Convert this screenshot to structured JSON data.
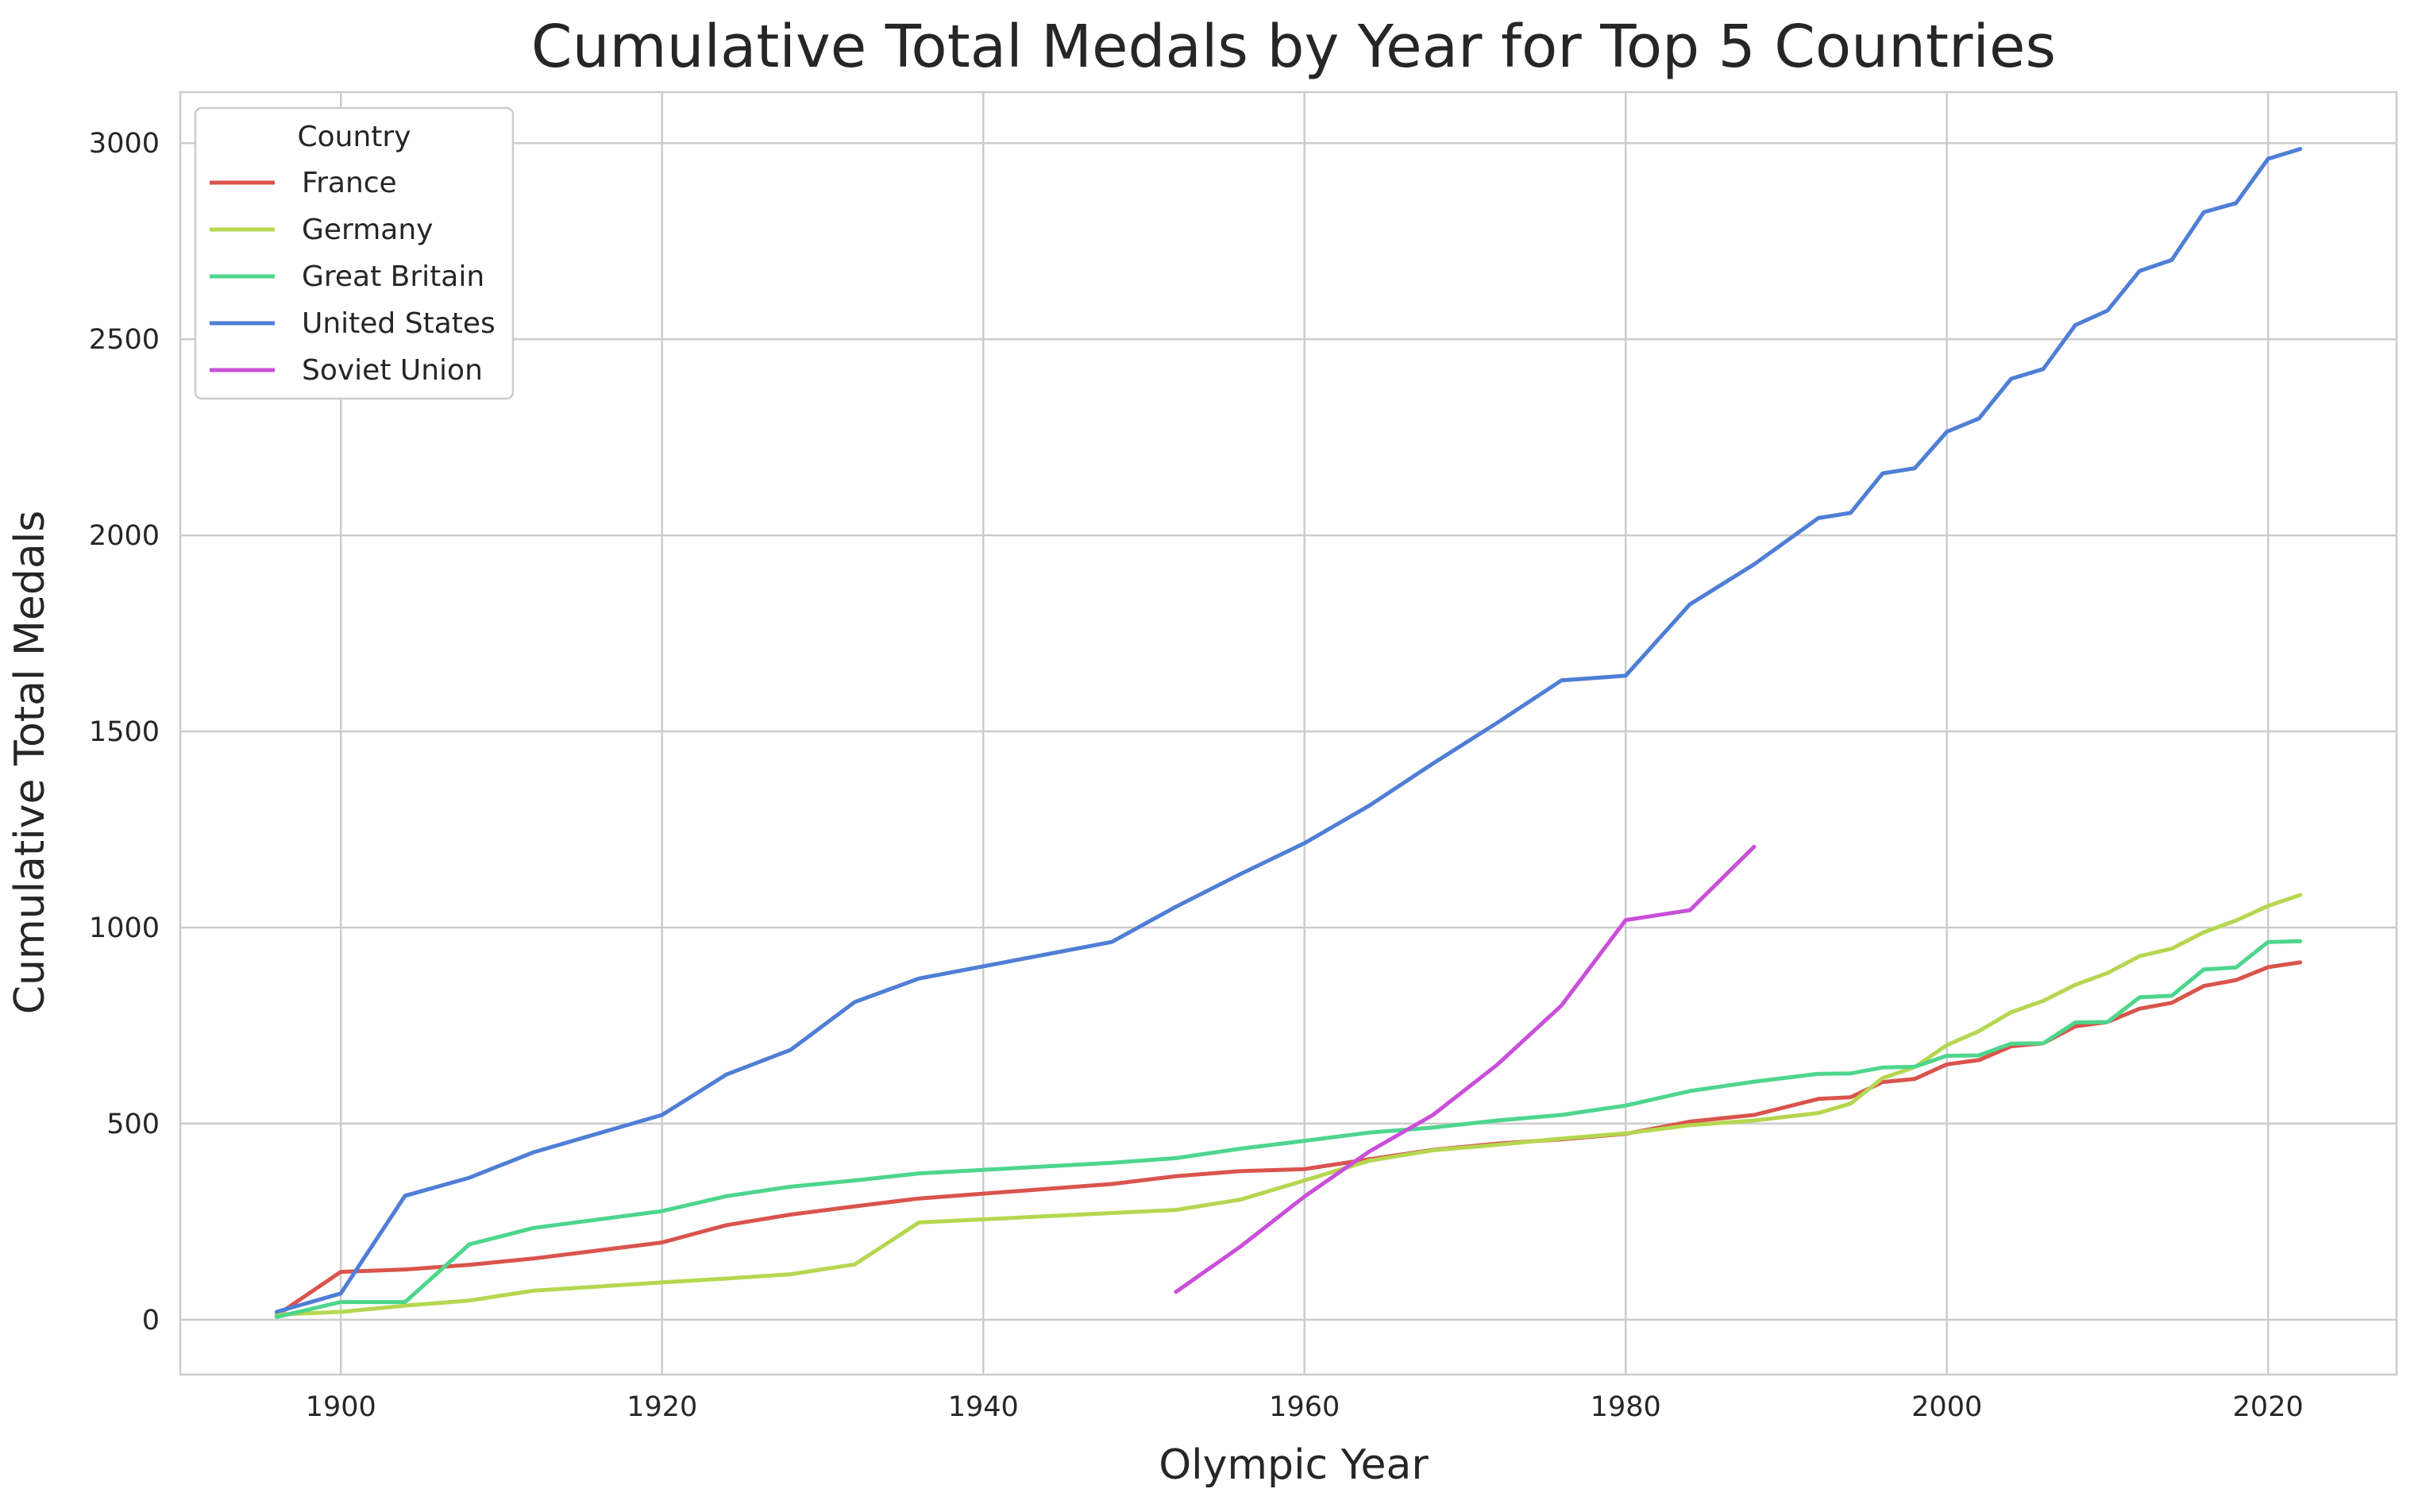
{
  "chart_data": {
    "type": "line",
    "title": "Cumulative Total Medals by Year for Top 5 Countries",
    "xlabel": "Olympic Year",
    "ylabel": "Cumulative Total Medals",
    "xlim": [
      1890,
      2028
    ],
    "ylim": [
      -140,
      3130
    ],
    "x_ticks": [
      1900,
      1920,
      1940,
      1960,
      1980,
      2000,
      2020
    ],
    "y_ticks": [
      0,
      500,
      1000,
      1500,
      2000,
      2500,
      3000
    ],
    "grid": true,
    "legend": {
      "title": "Country",
      "placement": "top-left"
    },
    "series": [
      {
        "name": "France",
        "color": "#d9544d",
        "points": [
          [
            1896,
            11
          ],
          [
            1900,
            122
          ],
          [
            1904,
            128
          ],
          [
            1908,
            140
          ],
          [
            1912,
            156
          ],
          [
            1920,
            197
          ],
          [
            1924,
            241
          ],
          [
            1928,
            268
          ],
          [
            1932,
            289
          ],
          [
            1936,
            309
          ],
          [
            1948,
            346
          ],
          [
            1952,
            366
          ],
          [
            1956,
            379
          ],
          [
            1960,
            384
          ],
          [
            1964,
            409
          ],
          [
            1968,
            433
          ],
          [
            1972,
            449
          ],
          [
            1976,
            460
          ],
          [
            1980,
            474
          ],
          [
            1984,
            505
          ],
          [
            1988,
            522
          ],
          [
            1992,
            563
          ],
          [
            1994,
            567
          ],
          [
            1996,
            606
          ],
          [
            1998,
            614
          ],
          [
            2000,
            651
          ],
          [
            2002,
            662
          ],
          [
            2004,
            697
          ],
          [
            2006,
            705
          ],
          [
            2008,
            748
          ],
          [
            2010,
            759
          ],
          [
            2012,
            793
          ],
          [
            2014,
            808
          ],
          [
            2016,
            851
          ],
          [
            2018,
            866
          ],
          [
            2020,
            899
          ],
          [
            2022,
            911
          ]
        ]
      },
      {
        "name": "Germany",
        "color": "#b5d750",
        "points": [
          [
            1896,
            13
          ],
          [
            1900,
            20
          ],
          [
            1904,
            36
          ],
          [
            1908,
            49
          ],
          [
            1912,
            74
          ],
          [
            1920,
            95
          ],
          [
            1924,
            105
          ],
          [
            1928,
            116
          ],
          [
            1932,
            141
          ],
          [
            1936,
            248
          ],
          [
            1948,
            272
          ],
          [
            1952,
            280
          ],
          [
            1956,
            306
          ],
          [
            1960,
            355
          ],
          [
            1964,
            405
          ],
          [
            1968,
            432
          ],
          [
            1972,
            446
          ],
          [
            1976,
            462
          ],
          [
            1980,
            475
          ],
          [
            1984,
            496
          ],
          [
            1988,
            508
          ],
          [
            1992,
            527
          ],
          [
            1994,
            551
          ],
          [
            1996,
            616
          ],
          [
            1998,
            644
          ],
          [
            2000,
            700
          ],
          [
            2002,
            736
          ],
          [
            2004,
            784
          ],
          [
            2006,
            813
          ],
          [
            2008,
            854
          ],
          [
            2010,
            884
          ],
          [
            2012,
            927
          ],
          [
            2014,
            946
          ],
          [
            2016,
            988
          ],
          [
            2018,
            1018
          ],
          [
            2020,
            1055
          ],
          [
            2022,
            1083
          ]
        ]
      },
      {
        "name": "Great Britain",
        "color": "#4dd68c",
        "points": [
          [
            1896,
            7
          ],
          [
            1900,
            45
          ],
          [
            1904,
            45
          ],
          [
            1908,
            192
          ],
          [
            1912,
            234
          ],
          [
            1920,
            277
          ],
          [
            1924,
            315
          ],
          [
            1928,
            339
          ],
          [
            1932,
            355
          ],
          [
            1936,
            373
          ],
          [
            1948,
            400
          ],
          [
            1952,
            412
          ],
          [
            1956,
            436
          ],
          [
            1960,
            456
          ],
          [
            1964,
            477
          ],
          [
            1968,
            490
          ],
          [
            1972,
            508
          ],
          [
            1976,
            522
          ],
          [
            1980,
            546
          ],
          [
            1984,
            583
          ],
          [
            1988,
            607
          ],
          [
            1992,
            627
          ],
          [
            1994,
            628
          ],
          [
            1996,
            643
          ],
          [
            1998,
            645
          ],
          [
            2000,
            673
          ],
          [
            2002,
            674
          ],
          [
            2004,
            704
          ],
          [
            2006,
            705
          ],
          [
            2008,
            758
          ],
          [
            2010,
            759
          ],
          [
            2012,
            822
          ],
          [
            2014,
            826
          ],
          [
            2016,
            893
          ],
          [
            2018,
            898
          ],
          [
            2020,
            963
          ],
          [
            2022,
            965
          ]
        ]
      },
      {
        "name": "United States",
        "color": "#4f7ed6",
        "points": [
          [
            1896,
            20
          ],
          [
            1900,
            67
          ],
          [
            1904,
            316
          ],
          [
            1908,
            362
          ],
          [
            1912,
            427
          ],
          [
            1920,
            522
          ],
          [
            1924,
            625
          ],
          [
            1928,
            688
          ],
          [
            1932,
            810
          ],
          [
            1936,
            870
          ],
          [
            1948,
            963
          ],
          [
            1952,
            1053
          ],
          [
            1956,
            1136
          ],
          [
            1960,
            1215
          ],
          [
            1964,
            1310
          ],
          [
            1968,
            1418
          ],
          [
            1972,
            1522
          ],
          [
            1976,
            1630
          ],
          [
            1980,
            1642
          ],
          [
            1984,
            1824
          ],
          [
            1988,
            1926
          ],
          [
            1992,
            2044
          ],
          [
            1994,
            2057
          ],
          [
            1996,
            2158
          ],
          [
            1998,
            2171
          ],
          [
            2000,
            2264
          ],
          [
            2002,
            2298
          ],
          [
            2004,
            2399
          ],
          [
            2006,
            2424
          ],
          [
            2008,
            2536
          ],
          [
            2010,
            2573
          ],
          [
            2012,
            2674
          ],
          [
            2014,
            2702
          ],
          [
            2016,
            2824
          ],
          [
            2018,
            2847
          ],
          [
            2020,
            2960
          ],
          [
            2022,
            2985
          ]
        ]
      },
      {
        "name": "Soviet Union",
        "color": "#c94fd9",
        "points": [
          [
            1952,
            71
          ],
          [
            1956,
            186
          ],
          [
            1960,
            314
          ],
          [
            1964,
            428
          ],
          [
            1968,
            522
          ],
          [
            1972,
            650
          ],
          [
            1976,
            801
          ],
          [
            1980,
            1019
          ],
          [
            1984,
            1044
          ],
          [
            1988,
            1206
          ]
        ]
      }
    ]
  }
}
